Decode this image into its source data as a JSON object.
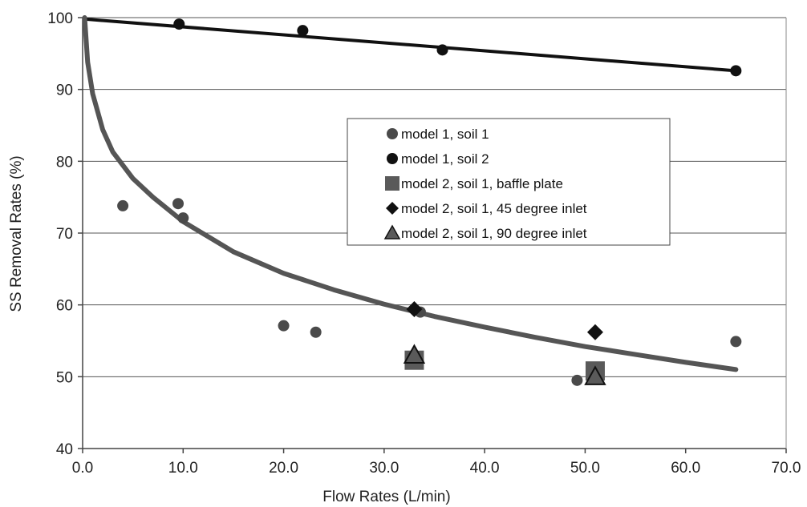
{
  "chart_data": {
    "type": "scatter",
    "title": "",
    "xlabel": "Flow Rates (L/min)",
    "ylabel": "SS Removal Rates (%)",
    "xlim": [
      0,
      70
    ],
    "ylim": [
      40,
      100
    ],
    "xticks": [
      0,
      10,
      20,
      30,
      40,
      50,
      60,
      70
    ],
    "xtick_labels": [
      "0.0",
      "10.0",
      "20.0",
      "30.0",
      "40.0",
      "50.0",
      "60.0",
      "70.0"
    ],
    "yticks": [
      40,
      50,
      60,
      70,
      80,
      90,
      100
    ],
    "ytick_labels": [
      "40",
      "50",
      "60",
      "70",
      "80",
      "90",
      "100"
    ],
    "grid": "horizontal",
    "legend_position": "center-right",
    "series": [
      {
        "name": "model 1, soil 1",
        "marker": "circle",
        "color": "#4a4a4a",
        "x": [
          4.0,
          9.5,
          10.0,
          20.0,
          23.2,
          33.6,
          49.2,
          65.0
        ],
        "y": [
          73.8,
          74.1,
          72.1,
          57.1,
          56.2,
          59.0,
          49.5,
          54.9
        ]
      },
      {
        "name": "model 1, soil 2",
        "marker": "circle",
        "color": "#111111",
        "x": [
          9.6,
          21.9,
          35.8,
          65.0
        ],
        "y": [
          99.1,
          98.2,
          95.5,
          92.6
        ]
      },
      {
        "name": "model 2, soil 1, baffle plate",
        "marker": "square",
        "color": "#5a5a5a",
        "x": [
          33.0,
          51.0
        ],
        "y": [
          52.3,
          50.8
        ]
      },
      {
        "name": "model 2, soil 1, 45 degree inlet",
        "marker": "diamond",
        "color": "#111111",
        "x": [
          33.0,
          51.0
        ],
        "y": [
          59.4,
          56.2
        ]
      },
      {
        "name": "model 2, soil 1, 90 degree inlet",
        "marker": "triangle",
        "color": "#5a5a5a",
        "x": [
          33.0,
          51.0
        ],
        "y": [
          53.0,
          50.0
        ]
      }
    ],
    "trendlines": [
      {
        "color": "#111111",
        "width": 4,
        "x": [
          0.2,
          65.0
        ],
        "y": [
          99.8,
          92.6
        ]
      },
      {
        "color": "#555555",
        "width": 6,
        "x": [
          0.2,
          0.5,
          1,
          2,
          3,
          5,
          7,
          10,
          15,
          20,
          25,
          30,
          35,
          40,
          45,
          50,
          55,
          60,
          65
        ],
        "y": [
          100,
          93.8,
          89.4,
          84.4,
          81.3,
          77.6,
          75.0,
          71.6,
          67.4,
          64.4,
          62.1,
          60.1,
          58.4,
          56.9,
          55.5,
          54.2,
          53.1,
          52.0,
          51.0
        ]
      }
    ]
  }
}
